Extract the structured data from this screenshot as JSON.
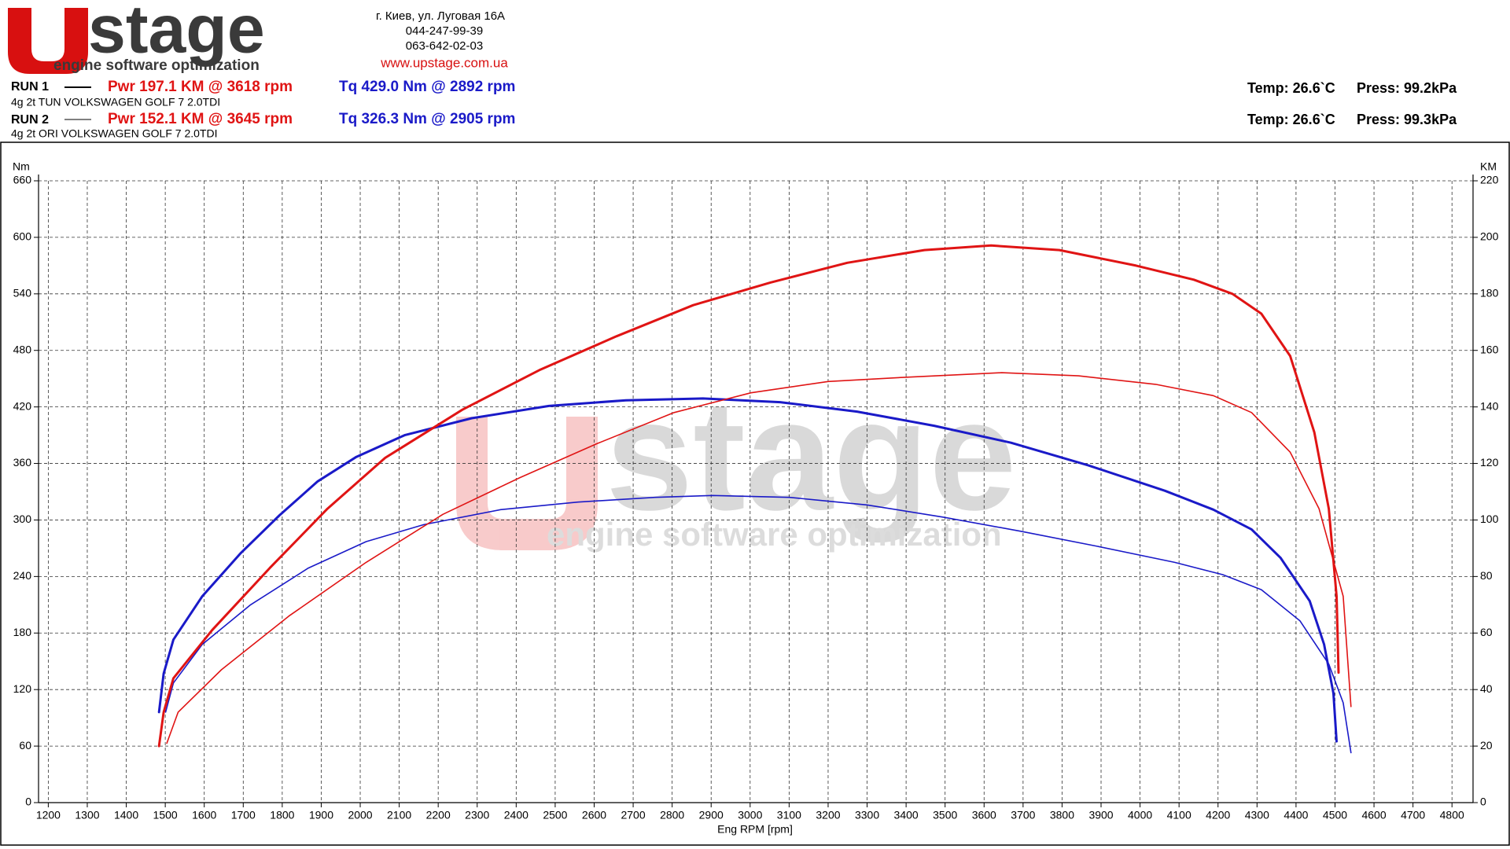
{
  "header": {
    "logo": {
      "word": "stage",
      "tagline": "engine software optimization"
    },
    "contact": {
      "address": "г. Киев, ул. Луговая 16A",
      "phone1": "044-247-99-39",
      "phone2": "063-642-02-03",
      "url": "www.upstage.com.ua"
    },
    "runs": [
      {
        "label": "RUN 1",
        "description": "4g 2t TUN VOLKSWAGEN GOLF 7 2.0TDI",
        "power": "Pwr  197.1 KM @ 3618 rpm",
        "torque": "Tq 429.0 Nm @ 2892 rpm",
        "temp": "Temp: 26.6`C",
        "press": "Press: 99.2kPa"
      },
      {
        "label": "RUN 2",
        "description": "4g 2t ORI VOLKSWAGEN GOLF 7 2.0TDI",
        "power": "Pwr  152.1 KM @ 3645 rpm",
        "torque": "Tq 326.3 Nm @ 2905 rpm",
        "temp": "Temp: 26.6`C",
        "press": "Press: 99.3kPa"
      }
    ]
  },
  "chart_data": {
    "type": "line",
    "x_label": "Eng RPM [rpm]",
    "y_label": "Nm",
    "y2_label": "KM",
    "xlim": [
      1175,
      4854
    ],
    "xticks": [
      1200,
      1300,
      1400,
      1500,
      1600,
      1700,
      1800,
      1900,
      2000,
      2100,
      2200,
      2300,
      2400,
      2500,
      2600,
      2700,
      2800,
      2900,
      3000,
      3100,
      3200,
      3300,
      3400,
      3500,
      3600,
      3700,
      3800,
      3900,
      4000,
      4100,
      4200,
      4300,
      4400,
      4500,
      4600,
      4700,
      4800
    ],
    "ylim": [
      0,
      660
    ],
    "yticks": [
      0,
      60,
      120,
      180,
      240,
      300,
      360,
      420,
      480,
      540,
      600,
      660
    ],
    "y2lim": [
      0,
      220
    ],
    "y2ticks": [
      0,
      20,
      40,
      60,
      80,
      100,
      120,
      140,
      160,
      180,
      200,
      220
    ],
    "grid": true,
    "series": [
      {
        "color": "#1a1ac8",
        "line_width": 3,
        "axis": "y",
        "x": [
          1484,
          1496,
          1521,
          1595,
          1694,
          1793,
          1891,
          1990,
          2114,
          2286,
          2484,
          2681,
          2879,
          3077,
          3274,
          3472,
          3669,
          3867,
          4064,
          4188,
          4286,
          4360,
          4435,
          4472,
          4496,
          4504
        ],
        "values": [
          96,
          137,
          173,
          219,
          265,
          305,
          341,
          367,
          390,
          408,
          421,
          427,
          429,
          425,
          415,
          400,
          382,
          358,
          331,
          311,
          290,
          260,
          214,
          168,
          116,
          65
        ]
      },
      {
        "color": "#1a1ac8",
        "line_width": 1.6,
        "axis": "y",
        "x": [
          1501,
          1521,
          1595,
          1719,
          1867,
          2015,
          2163,
          2360,
          2558,
          2756,
          2904,
          3101,
          3299,
          3496,
          3694,
          3891,
          4089,
          4212,
          4311,
          4410,
          4484,
          4521,
          4541
        ],
        "values": [
          96,
          127,
          168,
          210,
          249,
          277,
          295,
          311,
          319,
          324,
          326,
          324,
          316,
          303,
          288,
          272,
          255,
          242,
          226,
          193,
          147,
          106,
          53
        ]
      },
      {
        "color": "#e01414",
        "line_width": 3,
        "axis": "y2",
        "x": [
          1484,
          1496,
          1521,
          1620,
          1768,
          1916,
          2064,
          2262,
          2459,
          2657,
          2854,
          3052,
          3249,
          3447,
          3618,
          3793,
          3990,
          4138,
          4237,
          4311,
          4385,
          4447,
          4484,
          4504,
          4509
        ],
        "values": [
          20,
          32,
          44,
          61,
          83,
          104,
          122,
          139,
          153,
          165,
          176,
          184,
          191,
          195.5,
          197.1,
          195.5,
          190,
          185,
          180,
          173,
          158,
          131,
          104,
          73,
          46
        ]
      },
      {
        "color": "#e01414",
        "line_width": 1.6,
        "axis": "y2",
        "x": [
          1504,
          1533,
          1644,
          1817,
          2015,
          2212,
          2410,
          2607,
          2805,
          3002,
          3200,
          3398,
          3645,
          3842,
          4040,
          4188,
          4286,
          4385,
          4459,
          4521,
          4541
        ],
        "values": [
          21,
          32,
          47,
          66,
          85,
          102,
          115,
          127,
          138,
          145,
          149,
          150.5,
          152.1,
          151,
          148,
          144,
          138,
          124,
          104,
          73,
          34
        ]
      }
    ]
  }
}
